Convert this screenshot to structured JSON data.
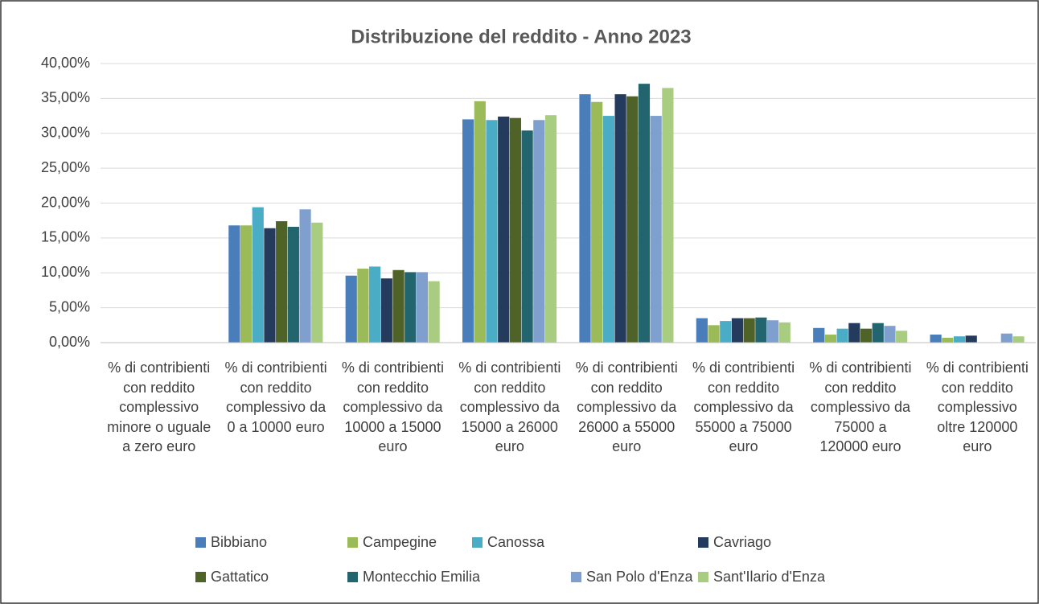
{
  "chart_data": {
    "type": "bar",
    "title": "Distribuzione del reddito - Anno 2023",
    "categories": [
      "% di contribienti con reddito complessivo minore o uguale a zero euro",
      "% di contribienti con reddito complessivo da 0 a 10000 euro",
      "% di contribienti con reddito complessivo da 10000 a 15000 euro",
      "% di contribienti con reddito complessivo da 15000 a 26000 euro",
      "% di contribienti con reddito complessivo da 26000 a 55000 euro",
      "% di contribienti con reddito complessivo da 55000 a 75000 euro",
      "% di contribienti con reddito complessivo da 75000 a 120000 euro",
      "% di contribienti con reddito complessivo oltre 120000 euro"
    ],
    "series": [
      {
        "name": "Bibbiano",
        "color": "#4a7ebb",
        "values": [
          0,
          16.8,
          9.6,
          32.0,
          35.6,
          3.5,
          2.1,
          1.15
        ]
      },
      {
        "name": "Campegine",
        "color": "#9bbb59",
        "values": [
          0,
          16.8,
          10.6,
          34.6,
          34.5,
          2.5,
          1.15,
          0.7
        ]
      },
      {
        "name": "Canossa",
        "color": "#4bacc6",
        "values": [
          0,
          19.4,
          10.9,
          31.9,
          32.5,
          3.1,
          2.0,
          0.9
        ]
      },
      {
        "name": "Cavriago",
        "color": "#253b5e",
        "values": [
          0,
          16.4,
          9.2,
          32.4,
          35.6,
          3.5,
          2.8,
          1.0
        ]
      },
      {
        "name": "Gattatico",
        "color": "#4f6228",
        "values": [
          0,
          17.4,
          10.4,
          32.2,
          35.3,
          3.5,
          2.0,
          0
        ]
      },
      {
        "name": "Montecchio Emilia",
        "color": "#23656f",
        "values": [
          0,
          16.6,
          10.1,
          30.4,
          37.1,
          3.6,
          2.8,
          0
        ]
      },
      {
        "name": "San Polo d'Enza",
        "color": "#7f9fcf",
        "values": [
          0,
          19.1,
          10.1,
          31.9,
          32.5,
          3.2,
          2.4,
          1.3
        ]
      },
      {
        "name": "Sant'Ilario d'Enza",
        "color": "#a9cd80",
        "values": [
          0,
          17.2,
          8.8,
          32.6,
          36.5,
          2.9,
          1.7,
          0.9
        ]
      }
    ],
    "ylim": [
      0,
      40
    ],
    "yticks": [
      {
        "value": 0,
        "label": "0,00%"
      },
      {
        "value": 5,
        "label": "5,00%"
      },
      {
        "value": 10,
        "label": "10,00%"
      },
      {
        "value": 15,
        "label": "15,00%"
      },
      {
        "value": 20,
        "label": "20,00%"
      },
      {
        "value": 25,
        "label": "25,00%"
      },
      {
        "value": 30,
        "label": "30,00%"
      },
      {
        "value": 35,
        "label": "35,00%"
      },
      {
        "value": 40,
        "label": "40,00%"
      }
    ],
    "grid": true,
    "legend": "bottom"
  }
}
